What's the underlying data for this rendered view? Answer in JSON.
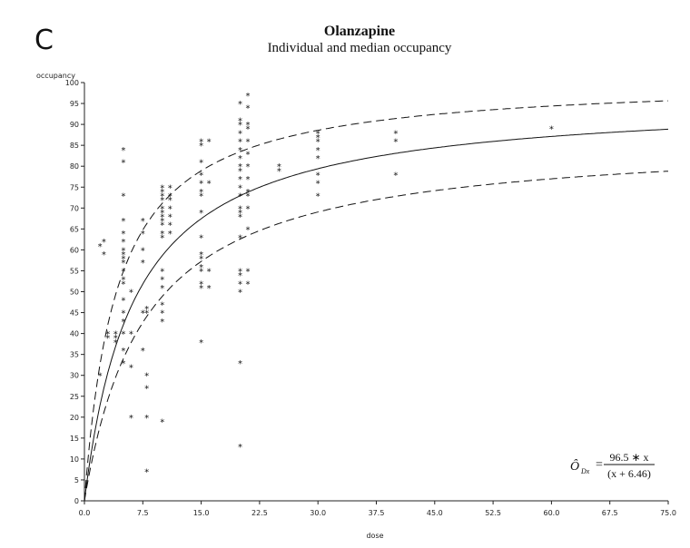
{
  "panel_label": "C",
  "chart_data": {
    "type": "scatter",
    "title": "Olanzapine",
    "subtitle": "Individual and median occupancy",
    "xlabel": "dose",
    "ylabel": "occupancy",
    "xlim": [
      0,
      75
    ],
    "ylim": [
      0,
      100
    ],
    "x_ticks": [
      "0.0",
      "7.5",
      "15.0",
      "22.5",
      "30.0",
      "37.5",
      "45.0",
      "52.5",
      "60.0",
      "67.5",
      "75.0"
    ],
    "y_ticks": [
      "0",
      "5",
      "10",
      "15",
      "20",
      "25",
      "30",
      "35",
      "40",
      "45",
      "50",
      "55",
      "60",
      "65",
      "70",
      "75",
      "80",
      "85",
      "90",
      "95",
      "100"
    ],
    "grid": false,
    "marker": "*",
    "points": [
      [
        2,
        30
      ],
      [
        2,
        61
      ],
      [
        2.5,
        59
      ],
      [
        2.5,
        62
      ],
      [
        3,
        39
      ],
      [
        3,
        40
      ],
      [
        4,
        38
      ],
      [
        4,
        39
      ],
      [
        4,
        40
      ],
      [
        5,
        33
      ],
      [
        5,
        36
      ],
      [
        5,
        40
      ],
      [
        5,
        43
      ],
      [
        5,
        45
      ],
      [
        5,
        48
      ],
      [
        5,
        52
      ],
      [
        5,
        53
      ],
      [
        5,
        55
      ],
      [
        5,
        57
      ],
      [
        5,
        58
      ],
      [
        5,
        59
      ],
      [
        5,
        60
      ],
      [
        5,
        62
      ],
      [
        5,
        64
      ],
      [
        5,
        67
      ],
      [
        5,
        73
      ],
      [
        5,
        81
      ],
      [
        5,
        84
      ],
      [
        6,
        20
      ],
      [
        6,
        32
      ],
      [
        6,
        40
      ],
      [
        6,
        50
      ],
      [
        7.5,
        36
      ],
      [
        7.5,
        45
      ],
      [
        7.5,
        57
      ],
      [
        7.5,
        60
      ],
      [
        7.5,
        64
      ],
      [
        7.5,
        67
      ],
      [
        8,
        7
      ],
      [
        8,
        20
      ],
      [
        8,
        27
      ],
      [
        8,
        30
      ],
      [
        8,
        45
      ],
      [
        8,
        46
      ],
      [
        10,
        19
      ],
      [
        10,
        43
      ],
      [
        10,
        45
      ],
      [
        10,
        47
      ],
      [
        10,
        51
      ],
      [
        10,
        53
      ],
      [
        10,
        55
      ],
      [
        10,
        63
      ],
      [
        10,
        64
      ],
      [
        10,
        66
      ],
      [
        10,
        67
      ],
      [
        10,
        68
      ],
      [
        10,
        69
      ],
      [
        10,
        70
      ],
      [
        10,
        72
      ],
      [
        10,
        73
      ],
      [
        10,
        74
      ],
      [
        10,
        75
      ],
      [
        11,
        64
      ],
      [
        11,
        66
      ],
      [
        11,
        68
      ],
      [
        11,
        70
      ],
      [
        11,
        72
      ],
      [
        11,
        73
      ],
      [
        11,
        75
      ],
      [
        15,
        38
      ],
      [
        15,
        51
      ],
      [
        15,
        52
      ],
      [
        15,
        55
      ],
      [
        15,
        56
      ],
      [
        15,
        58
      ],
      [
        15,
        59
      ],
      [
        15,
        63
      ],
      [
        15,
        69
      ],
      [
        15,
        73
      ],
      [
        15,
        74
      ],
      [
        15,
        76
      ],
      [
        15,
        78
      ],
      [
        15,
        81
      ],
      [
        15,
        85
      ],
      [
        15,
        86
      ],
      [
        16,
        51
      ],
      [
        16,
        55
      ],
      [
        16,
        76
      ],
      [
        16,
        86
      ],
      [
        20,
        13
      ],
      [
        20,
        33
      ],
      [
        20,
        50
      ],
      [
        20,
        52
      ],
      [
        20,
        54
      ],
      [
        20,
        55
      ],
      [
        20,
        63
      ],
      [
        20,
        68
      ],
      [
        20,
        69
      ],
      [
        20,
        70
      ],
      [
        20,
        73
      ],
      [
        20,
        75
      ],
      [
        20,
        77
      ],
      [
        20,
        79
      ],
      [
        20,
        80
      ],
      [
        20,
        82
      ],
      [
        20,
        84
      ],
      [
        20,
        86
      ],
      [
        20,
        88
      ],
      [
        20,
        90
      ],
      [
        20,
        91
      ],
      [
        20,
        95
      ],
      [
        21,
        52
      ],
      [
        21,
        55
      ],
      [
        21,
        65
      ],
      [
        21,
        70
      ],
      [
        21,
        73
      ],
      [
        21,
        74
      ],
      [
        21,
        77
      ],
      [
        21,
        80
      ],
      [
        21,
        83
      ],
      [
        21,
        86
      ],
      [
        21,
        89
      ],
      [
        21,
        90
      ],
      [
        21,
        94
      ],
      [
        21,
        97
      ],
      [
        25,
        79
      ],
      [
        25,
        80
      ],
      [
        30,
        73
      ],
      [
        30,
        76
      ],
      [
        30,
        78
      ],
      [
        30,
        82
      ],
      [
        30,
        84
      ],
      [
        30,
        86
      ],
      [
        30,
        87
      ],
      [
        30,
        88
      ],
      [
        40,
        78
      ],
      [
        40,
        86
      ],
      [
        40,
        88
      ],
      [
        60,
        89
      ]
    ],
    "curves": [
      {
        "style": "solid",
        "emax": 96.5,
        "ed50": 6.46
      },
      {
        "style": "dashed",
        "emax": 101,
        "ed50": 4.2
      },
      {
        "style": "dashed",
        "emax": 87,
        "ed50": 7.8
      }
    ],
    "annotation": {
      "lhs": "Ô",
      "lhs_sub": "Dx",
      "equals": "=",
      "numerator": "96.5 ∗ x",
      "denominator": "(x + 6.46)"
    }
  }
}
